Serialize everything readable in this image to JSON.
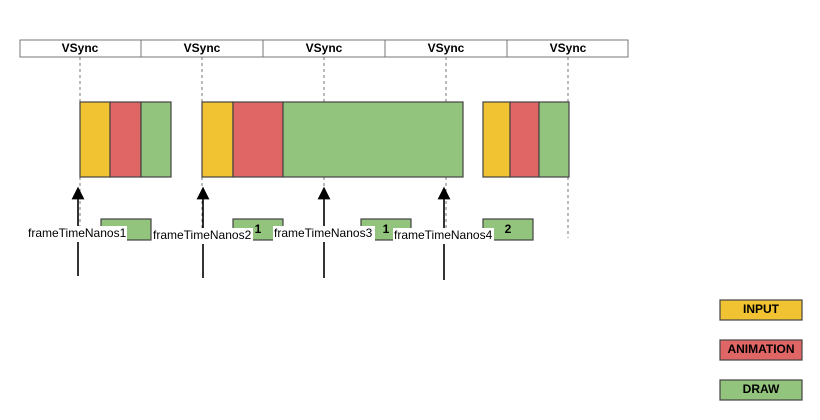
{
  "vsync": [
    "VSync",
    "VSync",
    "VSync",
    "VSync",
    "VSync"
  ],
  "frame_time_labels": [
    "frameTimeNanos1",
    "frameTimeNanos2",
    "frameTimeNanos3",
    "frameTimeNanos4"
  ],
  "queue_counts": [
    "1",
    "1",
    "2"
  ],
  "legend": [
    "INPUT",
    "ANIMATION",
    "DRAW"
  ]
}
